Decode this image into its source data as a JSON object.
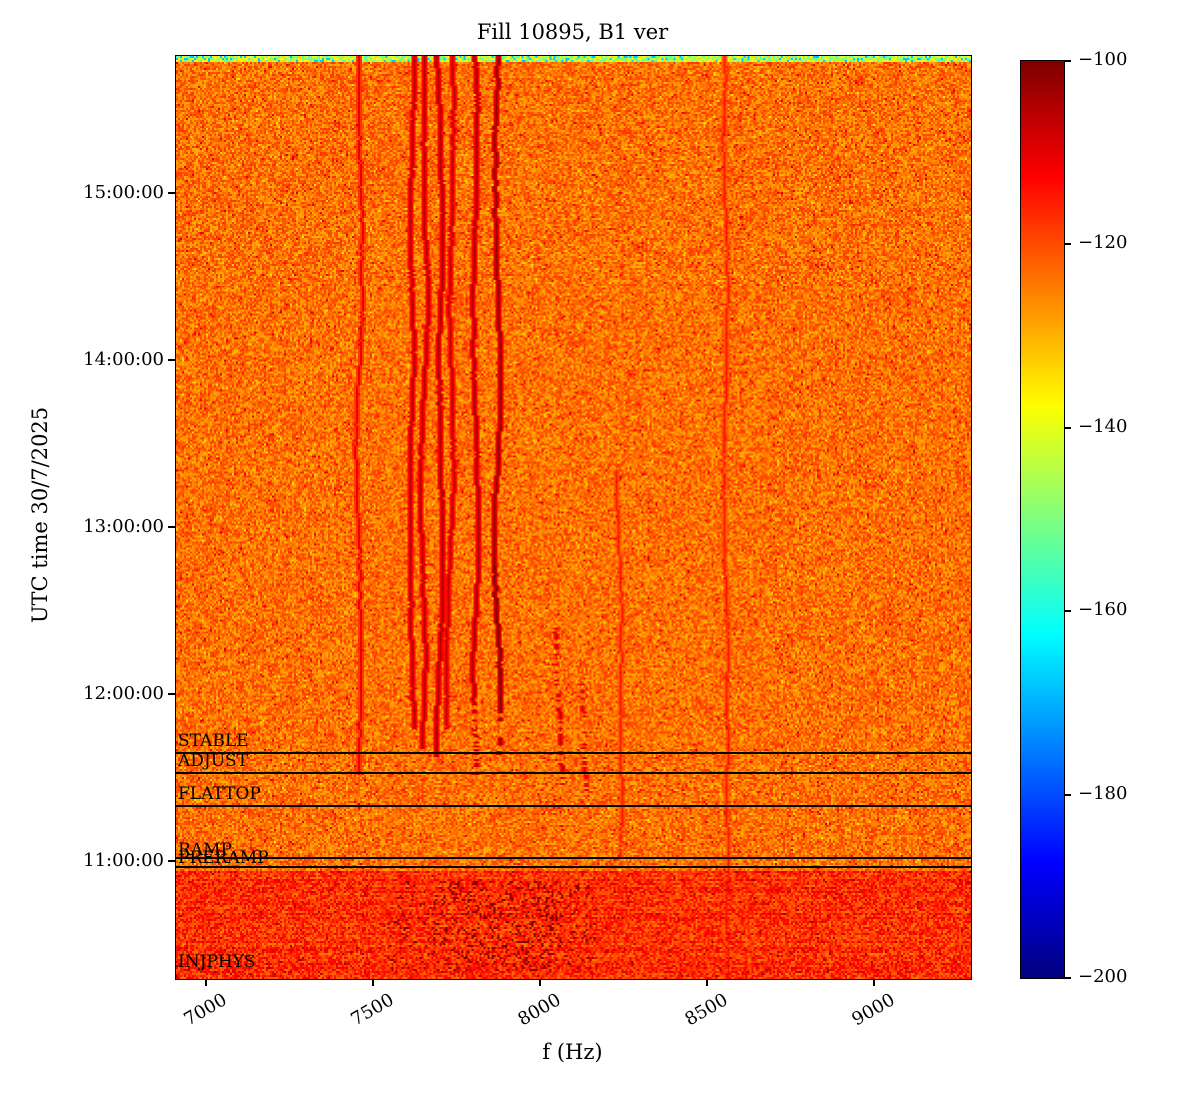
{
  "chart_data": {
    "type": "heatmap",
    "subtype": "spectrogram",
    "title": "Fill 10895, B1 ver",
    "xlabel": "f (Hz)",
    "ylabel": "UTC time 30/7/2025",
    "date": "30/7/2025",
    "x_range_hz": [
      6910,
      9290
    ],
    "x_ticks": [
      "7000",
      "7500",
      "8000",
      "8500",
      "9000"
    ],
    "y_ticks": [
      "15:00:00",
      "14:00:00",
      "13:00:00",
      "12:00:00",
      "11:00:00"
    ],
    "time_range": [
      "10:18",
      "15:50"
    ],
    "grid": false,
    "colorbar": {
      "colormap": "jet",
      "min": -200,
      "max": -100,
      "ticks": [
        "−100",
        "−120",
        "−140",
        "−160",
        "−180",
        "−200"
      ]
    },
    "beam_modes": [
      {
        "label": "STABLE"
      },
      {
        "label": "ADJUST"
      },
      {
        "label": "FLATTOP"
      },
      {
        "label": "RAMP"
      },
      {
        "label": "PRERAMP"
      },
      {
        "label": "INJPHYS"
      }
    ],
    "background_level_db": -122,
    "top_strip": {
      "rows": 3,
      "level_db_min": -165,
      "level_db_max": -133
    },
    "injection_band": {
      "from_frac": 0.883,
      "level_db": -117,
      "speckle_hz": [
        7540,
        8160
      ],
      "speckle_db": -99
    },
    "spectral_lines": [
      {
        "f": 7455,
        "db": -110,
        "from": 0.0,
        "to": 0.78,
        "wiggle": 0.9
      },
      {
        "f": 7618,
        "db": -105,
        "from": 0.0,
        "to": 0.73,
        "wiggle": 1.2
      },
      {
        "f": 7656,
        "db": -105,
        "from": 0.0,
        "to": 0.75,
        "wiggle": 1.2
      },
      {
        "f": 7694,
        "db": -104,
        "from": 0.0,
        "to": 0.76,
        "wiggle": 1.3
      },
      {
        "f": 7732,
        "db": -106,
        "from": 0.0,
        "to": 0.73,
        "wiggle": 1.1
      },
      {
        "f": 7800,
        "db": -104,
        "from": 0.0,
        "to": 0.78,
        "wiggle": 1.3,
        "spotty_from": 0.7
      },
      {
        "f": 7868,
        "db": -102,
        "from": 0.0,
        "to": 0.76,
        "wiggle": 1.4,
        "dark_from": 0.55,
        "dark_to": 0.71,
        "dark_db": -100,
        "spotty_from": 0.71
      },
      {
        "f": 8050,
        "db": -106,
        "from": 0.62,
        "to": 0.79,
        "wiggle": 1.0,
        "spotty_from": 0.62
      },
      {
        "f": 8130,
        "db": -107,
        "from": 0.68,
        "to": 0.8,
        "wiggle": 1.0,
        "spotty_from": 0.68
      },
      {
        "f": 8230,
        "db": -114,
        "from": 0.45,
        "to": 1.0,
        "wiggle": 0.8,
        "spotty_from": 0.85
      },
      {
        "f": 8550,
        "db": -114,
        "from": 0.0,
        "to": 1.0,
        "wiggle": 0.8
      }
    ]
  }
}
